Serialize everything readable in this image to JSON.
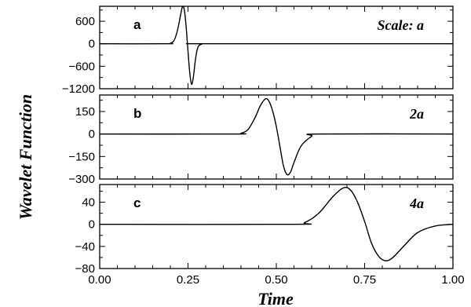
{
  "chart_data": {
    "type": "line",
    "xlabel": "Time",
    "ylabel": "Wavelet Function",
    "xlim": [
      0,
      1
    ],
    "x_ticks": [
      "0.00",
      "0.25",
      "0.50",
      "0.75",
      "1.00"
    ],
    "panels": [
      {
        "panel": "a",
        "scale_label": "Scale: a",
        "ylim": [
          -1200,
          1000
        ],
        "y_ticks": [
          "600",
          "0",
          "−600",
          "−1200"
        ],
        "y_tick_values": [
          600,
          0,
          -600,
          -1200
        ],
        "series": [
          {
            "x": [
              0.0,
              0.19,
              0.2,
              0.21,
              0.22,
              0.23,
              0.235,
              0.24,
              0.245,
              0.25,
              0.255,
              0.26,
              0.265,
              0.27,
              0.275,
              0.28,
              0.29,
              0.3,
              1.0
            ],
            "y": [
              0,
              0,
              12,
              80,
              350,
              820,
              1000,
              880,
              420,
              -200,
              -780,
              -1080,
              -900,
              -500,
              -200,
              -60,
              -5,
              0,
              0
            ]
          }
        ]
      },
      {
        "panel": "b",
        "scale_label": "2a",
        "ylim": [
          -300,
          260
        ],
        "y_ticks": [
          "150",
          "0",
          "−150",
          "−300"
        ],
        "y_tick_values": [
          150,
          0,
          -150,
          -300
        ],
        "series": [
          {
            "x": [
              0.0,
              0.38,
              0.4,
              0.42,
              0.44,
              0.455,
              0.47,
              0.48,
              0.49,
              0.5,
              0.51,
              0.52,
              0.53,
              0.54,
              0.55,
              0.57,
              0.6,
              0.62,
              1.0
            ],
            "y": [
              0,
              0,
              5,
              30,
              110,
              190,
              235,
              215,
              150,
              50,
              -80,
              -210,
              -270,
              -255,
              -190,
              -80,
              -15,
              0,
              0
            ]
          }
        ]
      },
      {
        "panel": "c",
        "scale_label": "4a",
        "ylim": [
          -80,
          72
        ],
        "y_ticks": [
          "40",
          "0",
          "−40",
          "−80"
        ],
        "y_tick_values": [
          40,
          0,
          -40,
          -80
        ],
        "series": [
          {
            "x": [
              0.0,
              0.55,
              0.58,
              0.62,
              0.66,
              0.69,
              0.71,
              0.73,
              0.75,
              0.77,
              0.79,
              0.81,
              0.83,
              0.86,
              0.9,
              0.95,
              1.0
            ],
            "y": [
              0,
              0,
              3,
              20,
              50,
              66,
              62,
              40,
              5,
              -35,
              -58,
              -66,
              -60,
              -40,
              -15,
              -3,
              0
            ]
          }
        ]
      }
    ]
  }
}
